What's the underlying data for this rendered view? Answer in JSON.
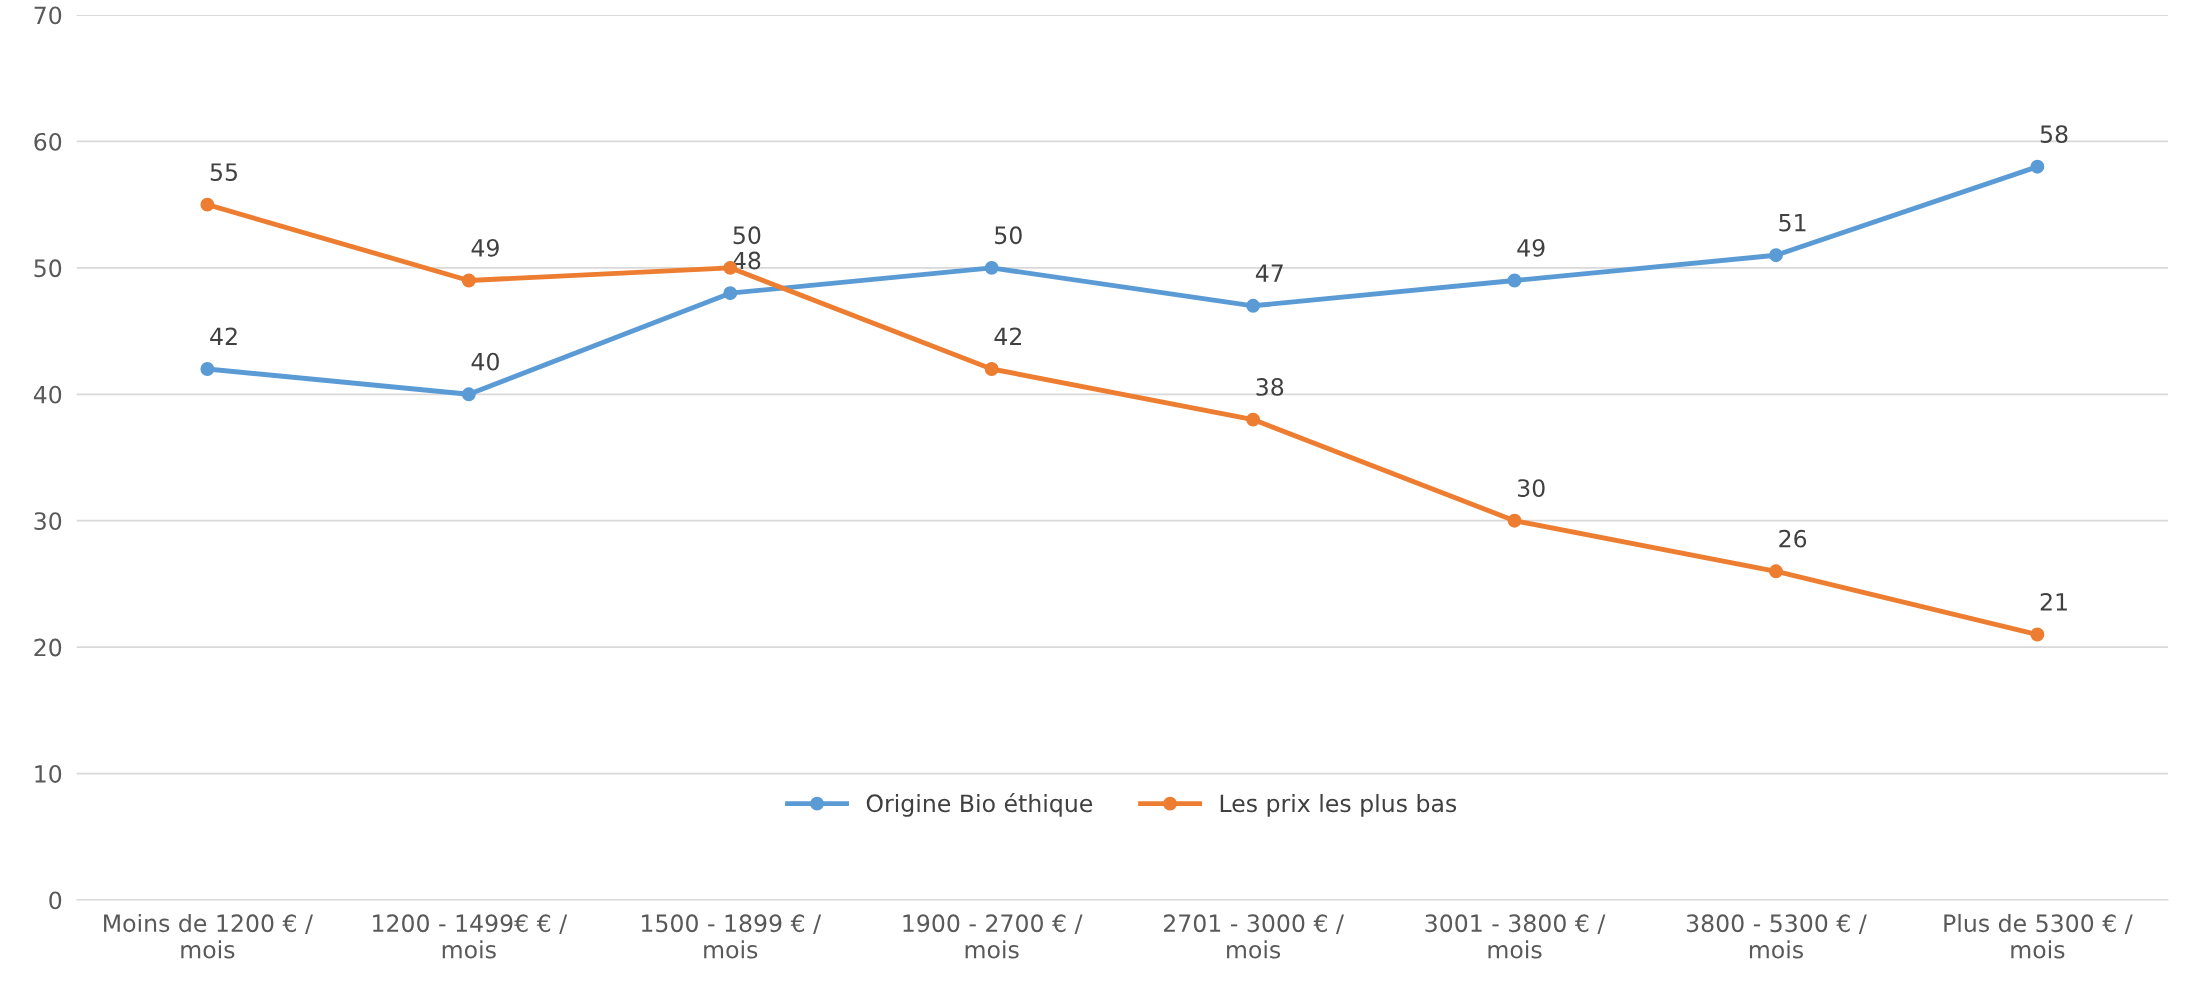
{
  "chart_data": {
    "type": "line",
    "categories": [
      "Moins de 1200 € /\nmois",
      "1200 - 1499€ € /\nmois",
      "1500 - 1899 € /\nmois",
      "1900 - 2700 € /\nmois",
      "2701 - 3000 € /\nmois",
      "3001 - 3800 € /\nmois",
      "3800 - 5300 € /\nmois",
      "Plus de 5300 € /\nmois"
    ],
    "series": [
      {
        "name": "Origine Bio éthique",
        "color": "#5b9bd5",
        "values": [
          42,
          40,
          48,
          50,
          47,
          49,
          51,
          58
        ]
      },
      {
        "name": "Les prix les plus bas",
        "color": "#ed7d31",
        "values": [
          55,
          49,
          50,
          42,
          38,
          30,
          26,
          21
        ]
      }
    ],
    "ylim": [
      0,
      70
    ],
    "yticks": [
      0,
      10,
      20,
      30,
      40,
      50,
      60,
      70
    ],
    "grid": "y",
    "legend": "bottom",
    "marker": "circle",
    "line_style": "solid",
    "data_labels": true
  }
}
